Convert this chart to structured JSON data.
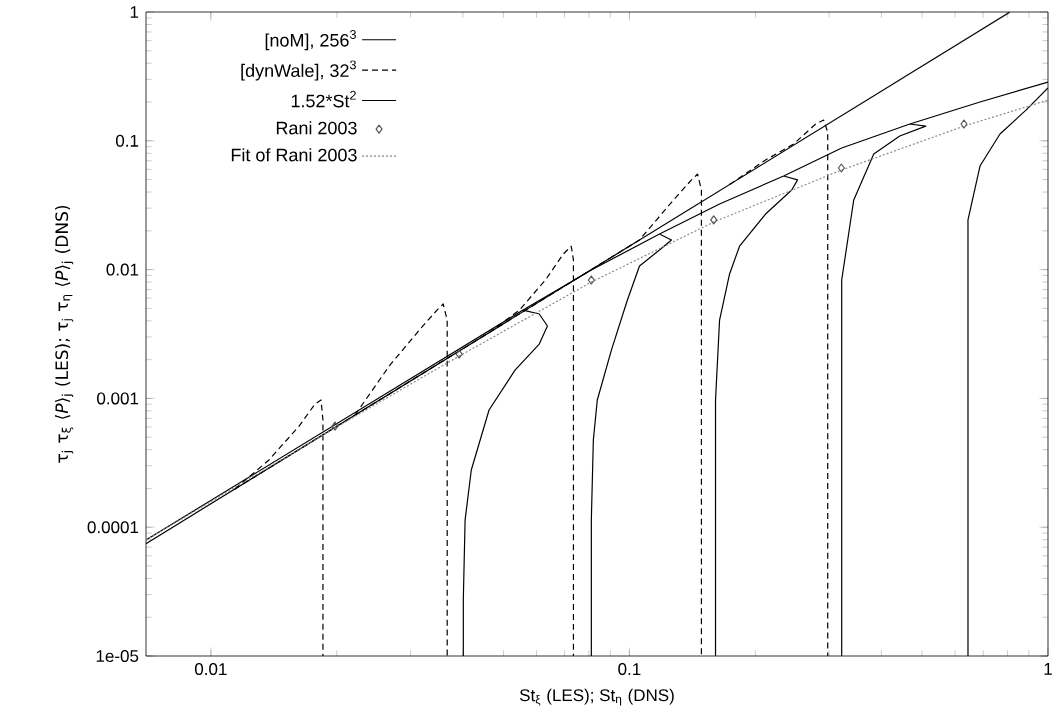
{
  "chart_data": {
    "type": "line",
    "xlabel": "St$_{ξ}$ (LES);   St$_{η}$ (DNS)",
    "ylabel": "τ$_{j}$ τ$_{ξ}$ ⟨*P*⟩$_{j}$  (LES);   τ$_{j}$ τ$_{η}$ ⟨*P*⟩$_{j}$   (DNS)",
    "log": "xy",
    "legend": "top left",
    "xlim": [
      0.007,
      1
    ],
    "ylim": [
      1e-05,
      1
    ],
    "xticks": [
      0.01,
      0.1,
      1
    ],
    "yticks": [
      {
        "value": 1e-05,
        "label": "1e-05"
      },
      0.0001,
      0.001,
      0.01,
      0.1,
      1
    ],
    "series": [
      {
        "name": "[noM], 256$^{3}$",
        "line_style": "solid",
        "color": "#000000",
        "x": [
          0.007,
          0.0557,
          0.0811,
          0.118,
          0.1642,
          0.2336,
          0.3215,
          0.4677,
          0.688,
          1,
          null,
          0.0401,
          0.0401,
          0.0405,
          0.0419,
          0.0462,
          0.0533,
          0.0609,
          0.0637,
          0.0609,
          0.0557,
          null,
          0.0811,
          0.0811,
          0.082,
          0.0838,
          0.0906,
          0.0989,
          0.1057,
          0.118,
          0.126,
          0.118,
          null,
          0.1606,
          0.1606,
          0.1642,
          0.1735,
          0.1833,
          0.2115,
          0.2442,
          0.2522,
          0.2336,
          null,
          0.3215,
          0.3215,
          0.3435,
          0.3835,
          0.4425,
          0.5105,
          0.4677,
          null,
          0.644,
          0.644,
          0.688,
          0.768,
          0.886,
          1
        ],
        "values": [
          7.96e-05,
          0.00485,
          0.00993,
          0.0189,
          0.0323,
          0.0533,
          0.0879,
          0.135,
          0.2,
          0.286,
          null,
          1e-05,
          2.72e-05,
          0.000114,
          0.000278,
          0.000813,
          0.00166,
          0.00264,
          0.00365,
          0.00452,
          0.00485,
          null,
          1e-05,
          0.000114,
          0.000475,
          0.000972,
          0.00238,
          0.00581,
          0.01067,
          0.0142,
          0.017,
          0.0189,
          null,
          1e-05,
          0.000972,
          0.00406,
          0.00925,
          0.0152,
          0.027,
          0.0415,
          0.0497,
          0.0533,
          null,
          1e-05,
          0.0083,
          0.0347,
          0.079,
          0.109,
          0.13,
          0.135,
          null,
          1e-05,
          0.0243,
          0.0637,
          0.113,
          0.173,
          0.257
        ]
      },
      {
        "name": "[dynWale], 32$^{3}$",
        "line_style": "dashed",
        "color": "#000000",
        "x": [
          0.0114,
          0.0221,
          0.0462,
          0.0896,
          null,
          0.0114,
          0.01377,
          0.01625,
          0.01774,
          0.01833,
          0.01853,
          0.01853,
          null,
          0.0221,
          0.0267,
          0.0315,
          0.0347,
          0.0359,
          0.0367,
          0.0367,
          null,
          0.0462,
          0.0546,
          0.063,
          0.0695,
          0.0726,
          0.0735,
          0.0735,
          null,
          0.0896,
          0.1057,
          0.1274,
          0.1407,
          0.1455,
          0.1486,
          0.1486,
          null,
          0.1735,
          0.2115,
          0.2468,
          0.2786,
          0.2911,
          0.2977,
          0.2977
        ],
        "values": [
          0.0001975,
          0.000742,
          0.00324,
          0.0122,
          null,
          0.0001975,
          0.000333,
          0.00061,
          0.000905,
          0.000972,
          0.00068,
          1e-05,
          null,
          0.000742,
          0.00179,
          0.0034,
          0.00485,
          0.00541,
          0.00406,
          1e-05,
          null,
          0.00324,
          0.00485,
          0.0083,
          0.0132,
          0.0152,
          0.01188,
          1e-05,
          null,
          0.0122,
          0.017,
          0.0347,
          0.0497,
          0.0552,
          0.0415,
          1e-05,
          null,
          0.0458,
          0.071,
          0.0944,
          0.135,
          0.145,
          0.117,
          1e-05
        ]
      },
      {
        "name": "1.52*St$^{2}$",
        "line_style": "solid",
        "color": "#000000",
        "x": [
          0.007,
          0.81
        ],
        "values": [
          7.448e-05,
          0.997
        ]
      },
      {
        "name": "Rani 2003",
        "type": "scatter",
        "marker": "diamond",
        "color": "#555555",
        "x": [
          0.0198,
          0.0392,
          0.0811,
          0.159,
          0.321,
          0.63
        ],
        "values": [
          0.00061,
          0.00221,
          0.0083,
          0.0243,
          0.0615,
          0.135
        ]
      },
      {
        "name": "Fit of Rani 2003",
        "line_style": "dotted",
        "color": "#888888",
        "x": [
          0.007,
          0.0198,
          0.0392,
          0.0811,
          0.159,
          0.321,
          0.63,
          1
        ],
        "values": [
          7.96e-05,
          0.000589,
          0.00213,
          0.008,
          0.0234,
          0.0593,
          0.13,
          0.207
        ]
      }
    ]
  }
}
